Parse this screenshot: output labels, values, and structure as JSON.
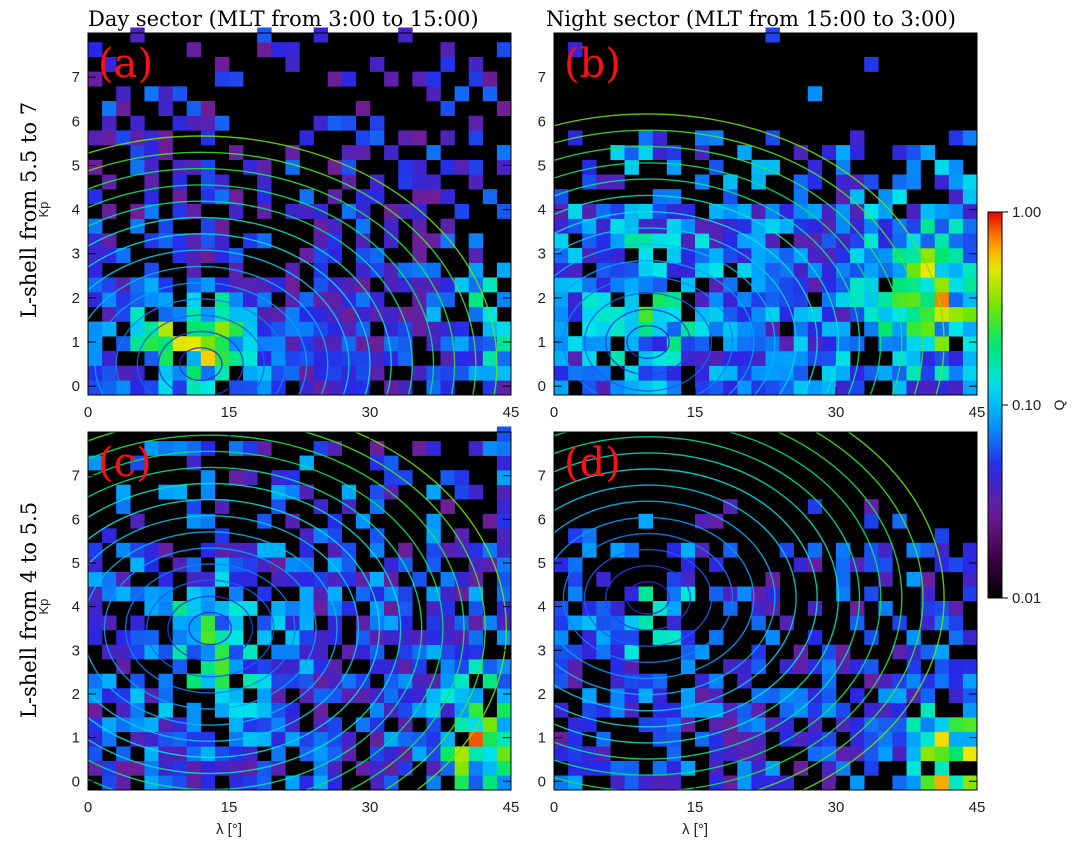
{
  "figure": {
    "column_titles": [
      "Day sector (MLT from 3:00 to 15:00)",
      "Night sector (MLT from 15:00 to 3:00)"
    ],
    "row_titles": [
      "L-shell from 5.5 to 7",
      "L-shell from 4 to 5.5"
    ]
  },
  "chart_data": [
    {
      "type": "heatmap",
      "panel_label": "(a)",
      "column": "Day sector (MLT from 3:00 to 15:00)",
      "row": "L-shell from 5.5 to 7",
      "ylabel": "Kp",
      "xlabel": "",
      "xlim": [
        0,
        45
      ],
      "ylim": [
        -0.2,
        8
      ],
      "xticks": [
        "0",
        "15",
        "30",
        "45"
      ],
      "yticks": [
        "0",
        "1",
        "2",
        "3",
        "4",
        "5",
        "6",
        "7"
      ],
      "cell_size": [
        1.5,
        0.333
      ],
      "contour_center": [
        12,
        0.5
      ]
    },
    {
      "type": "heatmap",
      "panel_label": "(b)",
      "column": "Night sector (MLT from 15:00 to 3:00)",
      "row": "L-shell from 5.5 to 7",
      "ylabel": "",
      "xlabel": "",
      "xlim": [
        0,
        45
      ],
      "ylim": [
        -0.2,
        8
      ],
      "xticks": [
        "0",
        "15",
        "30",
        "45"
      ],
      "yticks": [
        "0",
        "1",
        "2",
        "3",
        "4",
        "5",
        "6",
        "7"
      ],
      "cell_size": [
        1.5,
        0.333
      ],
      "contour_center": [
        10,
        1
      ]
    },
    {
      "type": "heatmap",
      "panel_label": "(c)",
      "column": "Day sector (MLT from 3:00 to 15:00)",
      "row": "L-shell from 4 to 5.5",
      "ylabel": "Kp",
      "xlabel": "λ [°]",
      "xlim": [
        0,
        45
      ],
      "ylim": [
        -0.2,
        8
      ],
      "xticks": [
        "0",
        "15",
        "30",
        "45"
      ],
      "yticks": [
        "0",
        "1",
        "2",
        "3",
        "4",
        "5",
        "6",
        "7"
      ],
      "cell_size": [
        1.5,
        0.333
      ],
      "contour_center": [
        13,
        3.5
      ]
    },
    {
      "type": "heatmap",
      "panel_label": "(d)",
      "column": "Night sector (MLT from 15:00 to 3:00)",
      "row": "L-shell from 4 to 5.5",
      "ylabel": "",
      "xlabel": "λ [°]",
      "xlim": [
        0,
        45
      ],
      "ylim": [
        -0.2,
        8
      ],
      "xticks": [
        "0",
        "15",
        "30",
        "45"
      ],
      "yticks": [
        "0",
        "1",
        "2",
        "3",
        "4",
        "5",
        "6",
        "7"
      ],
      "cell_size": [
        1.5,
        0.333
      ],
      "contour_center": [
        10,
        4.2
      ]
    }
  ],
  "colorbar": {
    "label": "Q",
    "scale": "log",
    "range": [
      0.01,
      1.0
    ],
    "tick_labels": [
      "1.00",
      "0.10",
      "0.01"
    ],
    "tick_values": [
      1.0,
      0.1,
      0.01
    ]
  },
  "colors": {
    "panel_background": "#000000",
    "panel_label": "#ff1010"
  }
}
